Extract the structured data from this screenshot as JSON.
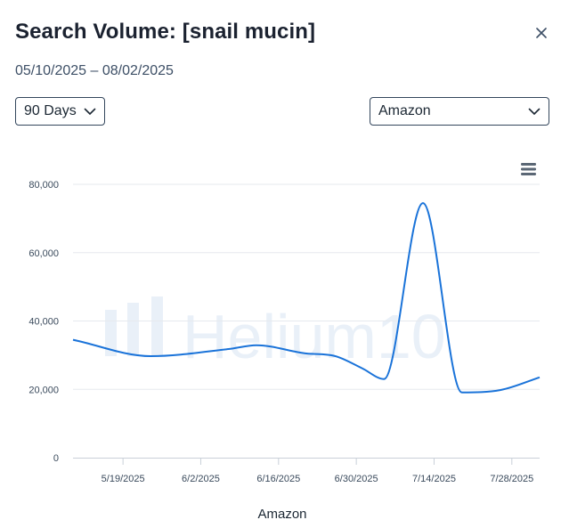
{
  "header": {
    "title": "Search Volume: [snail mucin]",
    "date_range": "05/10/2025 – 08/02/2025"
  },
  "controls": {
    "period_select": {
      "value": "90 Days"
    },
    "marketplace_select": {
      "value": "Amazon"
    }
  },
  "icons": {
    "close": "close-icon",
    "period_chevron": "chevron-down-icon",
    "marketplace_chevron": "chevron-down-icon",
    "chart_menu": "hamburger-menu-icon"
  },
  "watermark": {
    "text": "Helium10"
  },
  "colors": {
    "line": "#1a73d9",
    "grid": "#e6e9ee",
    "watermark": "#e9f0f8"
  },
  "chart_data": {
    "type": "line",
    "grid": true,
    "ylim": [
      0,
      80000
    ],
    "yticks": [
      0,
      20000,
      40000,
      60000,
      80000
    ],
    "ytick_labels": [
      "0",
      "20,000",
      "40,000",
      "60,000",
      "80,000"
    ],
    "xlim": [
      "2025-05-10",
      "2025-08-02"
    ],
    "xticks": [
      "2025-05-19",
      "2025-06-02",
      "2025-06-16",
      "2025-06-30",
      "2025-07-14",
      "2025-07-28"
    ],
    "xtick_labels": [
      "5/19/2025",
      "6/2/2025",
      "6/16/2025",
      "6/30/2025",
      "7/14/2025",
      "7/28/2025"
    ],
    "legend": "bottom",
    "series": [
      {
        "name": "Amazon",
        "x": [
          "2025-05-10",
          "2025-05-24",
          "2025-06-07",
          "2025-06-12",
          "2025-06-21",
          "2025-06-26",
          "2025-07-01",
          "2025-07-05",
          "2025-07-12",
          "2025-07-19",
          "2025-07-26",
          "2025-08-02"
        ],
        "values": [
          34500,
          29700,
          31800,
          32900,
          30500,
          29800,
          26200,
          23000,
          74500,
          19100,
          19800,
          23500
        ]
      }
    ]
  }
}
